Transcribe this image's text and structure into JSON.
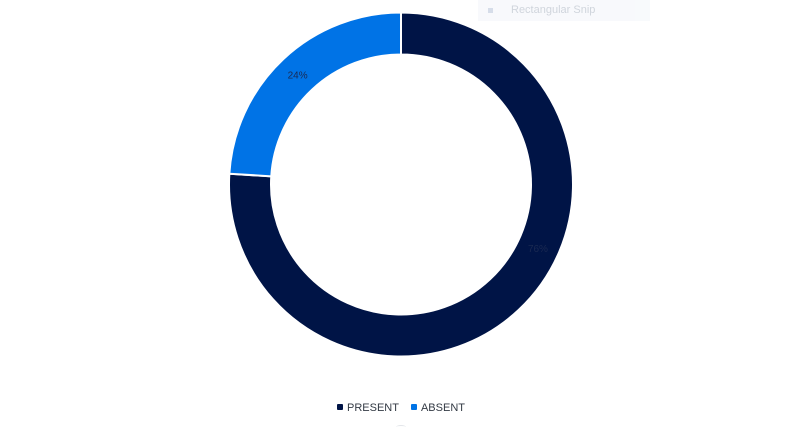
{
  "tooltip": {
    "label": "Rectangular Snip"
  },
  "chart_data": {
    "type": "pie",
    "donut": true,
    "title": "",
    "categories": [
      "PRESENT",
      "ABSENT"
    ],
    "values": [
      76,
      24
    ],
    "data_labels": [
      "76%",
      "24%"
    ],
    "colors": [
      "#001446",
      "#0073e6"
    ],
    "legend_position": "bottom-center"
  }
}
